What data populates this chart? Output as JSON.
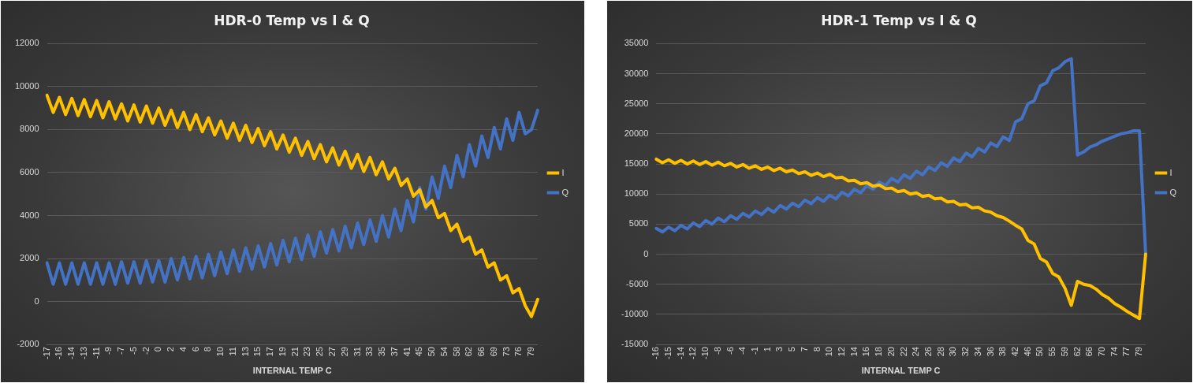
{
  "chart_data": [
    {
      "type": "line",
      "title": "HDR-0 Temp vs I & Q",
      "xlabel": "INTERNAL TEMP C",
      "grid": "y",
      "legend": "right",
      "marker": "none",
      "categories": [
        "-17",
        null,
        "-16",
        null,
        "-14",
        null,
        "-13",
        null,
        "-11",
        null,
        "-9",
        null,
        "-7",
        null,
        "-5",
        null,
        "-2",
        null,
        "0",
        null,
        "2",
        null,
        "4",
        null,
        "6",
        null,
        "8",
        null,
        "10",
        null,
        "11",
        null,
        "13",
        null,
        "15",
        null,
        "17",
        null,
        "19",
        null,
        "21",
        null,
        "23",
        null,
        "25",
        null,
        "27",
        null,
        "29",
        null,
        "31",
        null,
        "33",
        null,
        "35",
        null,
        "37",
        null,
        "41",
        null,
        "45",
        null,
        "50",
        null,
        "54",
        null,
        "58",
        null,
        "62",
        null,
        "66",
        null,
        "69",
        null,
        "73",
        null,
        "76",
        null,
        "79",
        null
      ],
      "ylim": [
        -2000,
        12000
      ],
      "yticks": [
        -2000,
        0,
        2000,
        4000,
        6000,
        8000,
        10000,
        12000
      ],
      "series": [
        {
          "name": "I",
          "color": "#ffc000",
          "values": [
            9600,
            8800,
            9500,
            8700,
            9450,
            8650,
            9400,
            8600,
            9350,
            8550,
            9300,
            8500,
            9200,
            8400,
            9150,
            8350,
            9100,
            8300,
            9000,
            8200,
            8900,
            8100,
            8800,
            8000,
            8700,
            7900,
            8550,
            7750,
            8400,
            7600,
            8300,
            7500,
            8200,
            7400,
            8050,
            7250,
            7900,
            7100,
            7750,
            6950,
            7600,
            6800,
            7450,
            6650,
            7300,
            6500,
            7150,
            6350,
            7000,
            6200,
            6850,
            6050,
            6700,
            5900,
            6500,
            5700,
            6200,
            5400,
            5700,
            4900,
            5200,
            4400,
            4700,
            3900,
            4100,
            3300,
            3600,
            2800,
            3000,
            2200,
            2400,
            1600,
            1800,
            1000,
            1200,
            400,
            600,
            -200,
            -700,
            100
          ]
        },
        {
          "name": "Q",
          "color": "#4472c4",
          "values": [
            1800,
            800,
            1800,
            800,
            1800,
            800,
            1800,
            800,
            1800,
            800,
            1800,
            800,
            1850,
            850,
            1850,
            850,
            1900,
            900,
            1900,
            900,
            2000,
            1000,
            2050,
            1050,
            2100,
            1100,
            2200,
            1200,
            2300,
            1300,
            2400,
            1400,
            2500,
            1500,
            2600,
            1600,
            2700,
            1700,
            2850,
            1850,
            2950,
            1950,
            3100,
            2100,
            3250,
            2250,
            3350,
            2350,
            3500,
            2500,
            3650,
            2650,
            3800,
            2800,
            4000,
            3000,
            4300,
            3300,
            4700,
            3700,
            5300,
            4300,
            5800,
            4800,
            6300,
            5300,
            6800,
            5800,
            7300,
            6300,
            7700,
            6700,
            8100,
            7100,
            8500,
            7500,
            8800,
            7800,
            8000,
            8900
          ]
        }
      ]
    },
    {
      "type": "line",
      "title": "HDR-1 Temp vs I & Q",
      "xlabel": "INTERNAL TEMP C",
      "grid": "y",
      "legend": "right",
      "marker": "none",
      "categories": [
        "-16",
        null,
        "-15",
        null,
        "-14",
        null,
        "-12",
        null,
        "-10",
        null,
        "-8",
        null,
        "-6",
        null,
        "-4",
        null,
        "-1",
        null,
        "1",
        null,
        "3",
        null,
        "5",
        null,
        "7",
        null,
        "8",
        null,
        "10",
        null,
        "12",
        null,
        "14",
        null,
        "16",
        null,
        "18",
        null,
        "20",
        null,
        "22",
        null,
        "24",
        null,
        "26",
        null,
        "28",
        null,
        "30",
        null,
        "32",
        null,
        "34",
        null,
        "36",
        null,
        "38",
        null,
        "42",
        null,
        "46",
        null,
        "50",
        null,
        "55",
        null,
        "59",
        null,
        "62",
        null,
        "66",
        null,
        "70",
        null,
        "74",
        null,
        "77",
        null,
        "79",
        null
      ],
      "ylim": [
        -15000,
        35000
      ],
      "yticks": [
        -15000,
        -10000,
        -5000,
        0,
        5000,
        10000,
        15000,
        20000,
        25000,
        30000,
        35000
      ],
      "series": [
        {
          "name": "I",
          "color": "#ffc000",
          "values": [
            15800,
            15200,
            15700,
            15100,
            15600,
            15000,
            15500,
            14900,
            15400,
            14800,
            15300,
            14700,
            15100,
            14500,
            14900,
            14300,
            14700,
            14100,
            14500,
            13900,
            14300,
            13700,
            14000,
            13400,
            13700,
            13100,
            13500,
            12900,
            13300,
            12700,
            12800,
            12200,
            12300,
            11700,
            11900,
            11300,
            11500,
            10900,
            11000,
            10400,
            10600,
            10000,
            10200,
            9600,
            9800,
            9200,
            9300,
            8700,
            8800,
            8200,
            8300,
            7700,
            7800,
            7200,
            7000,
            6400,
            6100,
            5500,
            4800,
            4200,
            2300,
            1700,
            -700,
            -1300,
            -3200,
            -3800,
            -5700,
            -8500,
            -4500,
            -5000,
            -5200,
            -5800,
            -6700,
            -7300,
            -8200,
            -8800,
            -9500,
            -10100,
            -10700,
            0
          ]
        },
        {
          "name": "Q",
          "color": "#4472c4",
          "values": [
            4300,
            3700,
            4500,
            3900,
            4800,
            4200,
            5200,
            4600,
            5600,
            5000,
            6000,
            5400,
            6400,
            5800,
            6800,
            6200,
            7200,
            6600,
            7600,
            7000,
            8100,
            7500,
            8500,
            7900,
            9000,
            8400,
            9400,
            8800,
            9800,
            9200,
            10300,
            9700,
            10800,
            10200,
            11400,
            10800,
            12000,
            11400,
            12600,
            12000,
            13200,
            12600,
            13800,
            13200,
            14500,
            13900,
            15200,
            14600,
            16000,
            15400,
            16800,
            16200,
            17600,
            17000,
            18500,
            17900,
            19500,
            18900,
            22000,
            22500,
            25000,
            25500,
            28000,
            28500,
            30500,
            31000,
            32000,
            32500,
            16500,
            17000,
            17800,
            18200,
            18800,
            19200,
            19600,
            20000,
            20200,
            20500,
            20500,
            0
          ]
        }
      ]
    }
  ]
}
